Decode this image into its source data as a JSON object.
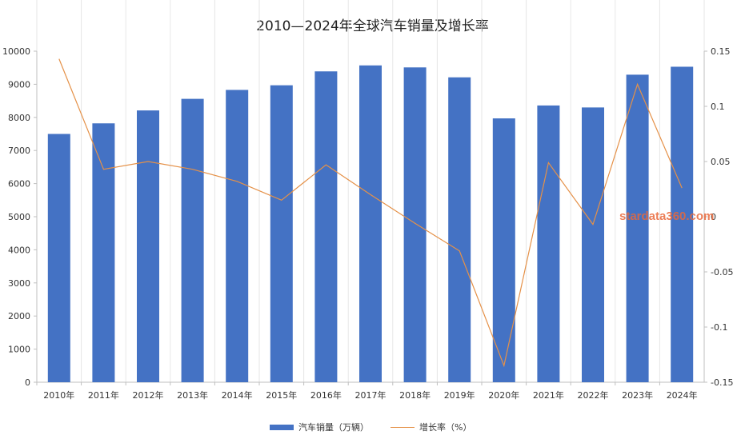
{
  "chart_data": {
    "type": "bar",
    "title": "2010—2024年全球汽车销量及增长率",
    "categories": [
      "2010年",
      "2011年",
      "2012年",
      "2013年",
      "2014年",
      "2015年",
      "2016年",
      "2017年",
      "2018年",
      "2019年",
      "2020年",
      "2021年",
      "2022年",
      "2023年",
      "2024年"
    ],
    "series": [
      {
        "name": "汽车销量（万辆）",
        "type": "bar",
        "axis": "left",
        "color": "#4472c4",
        "values": [
          7500,
          7820,
          8210,
          8560,
          8830,
          8970,
          9390,
          9570,
          9510,
          9210,
          7970,
          8360,
          8300,
          9290,
          9530
        ]
      },
      {
        "name": "增长率（%）",
        "type": "line",
        "axis": "right",
        "color": "#e59148",
        "values": [
          0.143,
          0.043,
          0.05,
          0.043,
          0.032,
          0.015,
          0.047,
          0.02,
          -0.006,
          -0.031,
          -0.135,
          0.049,
          -0.007,
          0.12,
          0.026
        ]
      }
    ],
    "y_left": {
      "min": 0,
      "max": 10000,
      "ticks": [
        "0",
        "1000",
        "2000",
        "3000",
        "4000",
        "5000",
        "6000",
        "7000",
        "8000",
        "9000",
        "10000"
      ]
    },
    "y_right": {
      "min": -0.15,
      "max": 0.15,
      "ticks": [
        "-0.15",
        "-0.1",
        "-0.05",
        "0",
        "0.05",
        "0.1",
        "0.15"
      ]
    },
    "grid": "vertical",
    "legend_position": "bottom"
  },
  "watermark": "stardata360.com"
}
